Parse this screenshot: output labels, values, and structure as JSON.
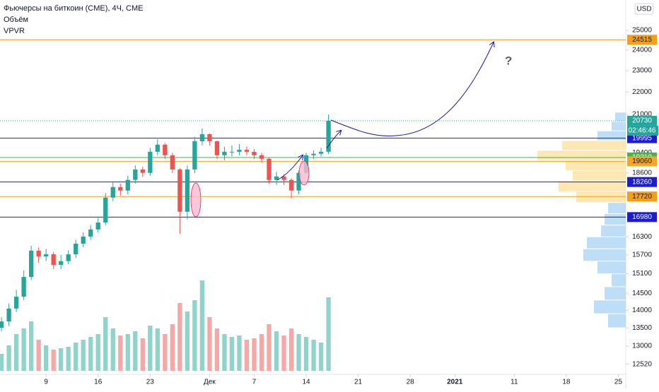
{
  "chart_data": {
    "type": "candlestick",
    "title": "Фьючерсы на биткоин (CME), 4Ч, CME",
    "indicators": [
      "Объём",
      "VPVR"
    ],
    "currency": "USD",
    "log_scale": true,
    "grid": false,
    "annotation": "?",
    "x": [
      3,
      4,
      5,
      6,
      7,
      8,
      9,
      10,
      11,
      12,
      13,
      14,
      15,
      16,
      17,
      18,
      19,
      20,
      21,
      22,
      23,
      24,
      25,
      26,
      27,
      28,
      29,
      30,
      31,
      32,
      33,
      34,
      35,
      36,
      37,
      38,
      39,
      40,
      41,
      42,
      43,
      44,
      45,
      46,
      47
    ],
    "xlim": [
      2.8,
      87
    ],
    "xticks": [
      {
        "value": 9,
        "label": "9"
      },
      {
        "value": 16,
        "label": "16"
      },
      {
        "value": 23,
        "label": "23"
      },
      {
        "value": 31,
        "label": "Дек"
      },
      {
        "value": 37,
        "label": "7"
      },
      {
        "value": 44,
        "label": "14"
      },
      {
        "value": 51,
        "label": "21"
      },
      {
        "value": 58,
        "label": "28"
      },
      {
        "value": 64,
        "label": "2021"
      },
      {
        "value": 72,
        "label": "11"
      },
      {
        "value": 79,
        "label": "18"
      },
      {
        "value": 86,
        "label": "25"
      }
    ],
    "ylim": [
      12260,
      26620
    ],
    "yticks": [
      12520,
      13000,
      13500,
      14000,
      14500,
      15100,
      15700,
      16300,
      18600,
      19400,
      21000,
      22000,
      23000,
      24000,
      25000
    ],
    "series": [
      {
        "up_color": "#26a69a",
        "down_color": "#ef5350",
        "open": [
          13500,
          13680,
          14050,
          14400,
          15000,
          15840,
          15650,
          15720,
          15380,
          15500,
          15720,
          16070,
          16310,
          16550,
          16790,
          17680,
          18070,
          17940,
          18340,
          18740,
          18610,
          19440,
          19730,
          19300,
          18740,
          17170,
          18740,
          19870,
          20160,
          19870,
          19300,
          19440,
          19440,
          19520,
          19440,
          19300,
          19160,
          18340,
          18470,
          18340,
          17940,
          18610,
          19300,
          19360,
          19440
        ],
        "high": [
          13800,
          14200,
          14600,
          15200,
          16000,
          15950,
          15900,
          15800,
          15700,
          15850,
          16200,
          16450,
          16700,
          16950,
          17850,
          18250,
          18200,
          18500,
          18900,
          18850,
          19600,
          19950,
          19800,
          19400,
          18800,
          18900,
          20050,
          20400,
          20200,
          19900,
          19650,
          19700,
          19750,
          19650,
          19550,
          19400,
          19200,
          18650,
          18550,
          18400,
          18700,
          19400,
          19500,
          19600,
          21000
        ],
        "low": [
          13400,
          13550,
          13950,
          14300,
          14900,
          15450,
          15500,
          15250,
          15250,
          15400,
          15600,
          15950,
          16200,
          16450,
          16700,
          17550,
          17750,
          17800,
          18200,
          18450,
          18500,
          19300,
          19150,
          18600,
          16400,
          16900,
          18600,
          19700,
          19700,
          19150,
          19100,
          19250,
          19300,
          19300,
          19150,
          19000,
          18200,
          18150,
          18150,
          17650,
          17800,
          18550,
          19150,
          19250,
          19350
        ],
        "close": [
          13680,
          14050,
          14400,
          15000,
          15840,
          15650,
          15720,
          15380,
          15500,
          15720,
          16070,
          16310,
          16550,
          16790,
          17680,
          18070,
          17940,
          18340,
          18740,
          18610,
          19440,
          19730,
          19300,
          18740,
          17170,
          18740,
          19870,
          20160,
          19870,
          19300,
          19440,
          19440,
          19520,
          19440,
          19300,
          19160,
          18340,
          18470,
          18340,
          17940,
          18610,
          19300,
          19360,
          19440,
          20730
        ]
      }
    ],
    "volume": {
      "ylim": [
        0,
        1000
      ],
      "up_color": "#8fd3cb",
      "down_color": "#f5a8a6",
      "values": [
        120,
        180,
        260,
        300,
        350,
        220,
        180,
        150,
        160,
        170,
        200,
        220,
        240,
        260,
        380,
        300,
        250,
        260,
        280,
        230,
        320,
        300,
        260,
        330,
        480,
        420,
        500,
        640,
        380,
        300,
        260,
        240,
        250,
        220,
        230,
        260,
        330,
        280,
        250,
        300,
        260,
        240,
        220,
        200,
        520
      ]
    },
    "vpvr": {
      "xlim": [
        0,
        200
      ],
      "bins": [
        13500,
        13900,
        14300,
        14700,
        15100,
        15500,
        15900,
        16300,
        16700,
        17100,
        17500,
        17900,
        18300,
        18700,
        19100,
        19500,
        19900,
        20300,
        20700,
        21100
      ],
      "values": [
        25,
        45,
        30,
        20,
        40,
        60,
        55,
        35,
        30,
        25,
        70,
        95,
        75,
        85,
        125,
        90,
        40,
        20,
        15
      ],
      "colors": [
        "#b2d8f5",
        "#b2d8f5",
        "#b2d8f5",
        "#b2d8f5",
        "#b2d8f5",
        "#b2d8f5",
        "#b2d8f5",
        "#b2d8f5",
        "#b2d8f5",
        "#b2d8f5",
        "#fde3a7",
        "#fde3a7",
        "#fde3a7",
        "#fde3a7",
        "#fde3a7",
        "#fde3a7",
        "#b2d8f5",
        "#b2d8f5",
        "#b2d8f5"
      ]
    },
    "levels": [
      {
        "value": 24515,
        "color": "#f59f19",
        "text_color": "#131722"
      },
      {
        "value": 19995,
        "color": "#1c1ccf",
        "text_color": "#ffffff"
      },
      {
        "value": 19210,
        "color": "#4caf50",
        "text_color": "#ffffff"
      },
      {
        "value": 19060,
        "color": "#f5a623",
        "text_color": "#131722"
      },
      {
        "value": 18260,
        "color": "#1c1ccf",
        "text_color": "#ffffff"
      },
      {
        "value": 17720,
        "color": "#f59f19",
        "text_color": "#131722"
      },
      {
        "value": 16980,
        "color": "#1c1ccf",
        "text_color": "#ffffff"
      }
    ],
    "last_price": {
      "value": 20730,
      "countdown": "02:46:46",
      "color": "#26a69a"
    }
  }
}
